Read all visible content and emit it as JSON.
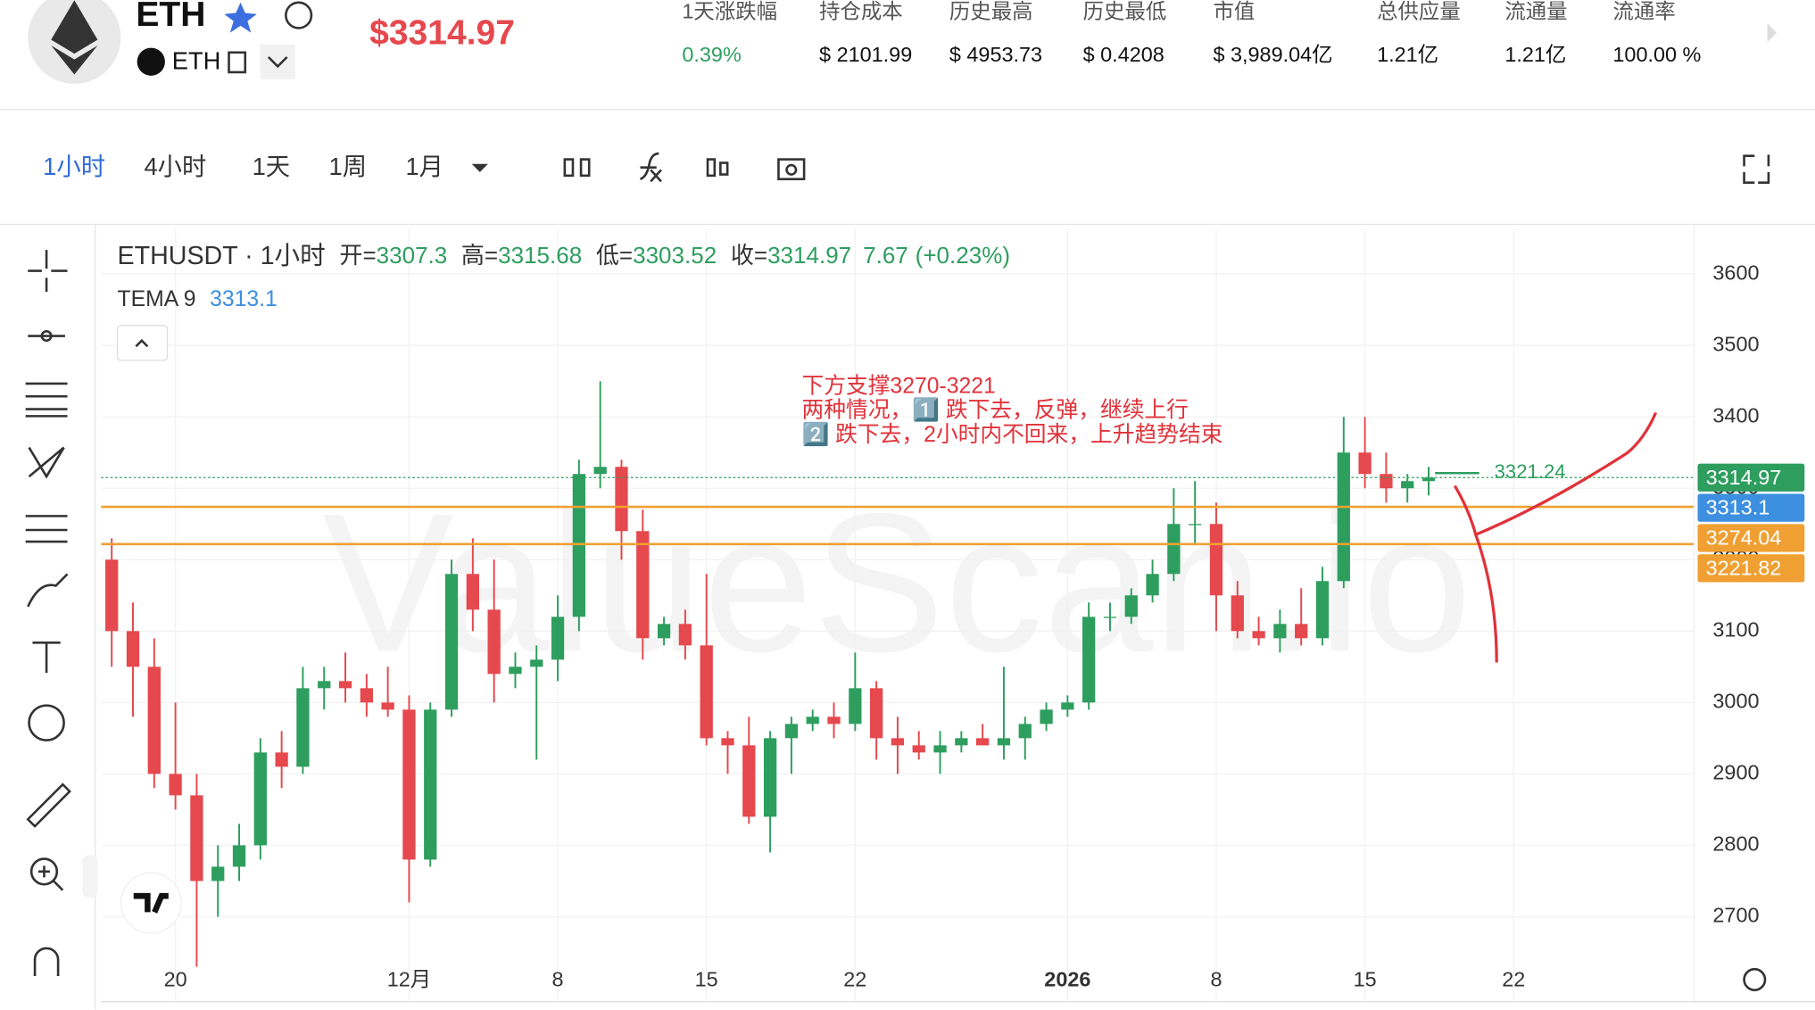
{
  "header": {
    "symbol": "ETH",
    "sub_symbol": "ETH",
    "price": "$3314.97",
    "stats": [
      {
        "label": "1天涨跌幅",
        "value": "0.39%"
      },
      {
        "label": "持仓成本",
        "value": "$ 2101.99"
      },
      {
        "label": "历史最高",
        "value": "$ 4953.73"
      },
      {
        "label": "历史最低",
        "value": "$ 0.4208"
      },
      {
        "label": "市值",
        "value": "$ 3,989.04亿"
      },
      {
        "label": "总供应量",
        "value": "1.21亿"
      },
      {
        "label": "流通量",
        "value": "1.21亿"
      },
      {
        "label": "流通率",
        "value": "100.00 %"
      }
    ]
  },
  "toolbar": {
    "intervals": [
      "1小时",
      "4小时",
      "1天",
      "1周",
      "1月"
    ]
  },
  "legend": {
    "title": "ETHUSDT · 1小时",
    "fields": [
      {
        "label": "开=",
        "value": 3307.3
      },
      {
        "label": "高=",
        "value": 3315.68
      },
      {
        "label": "低=",
        "value": 3303.52
      },
      {
        "label": "收=",
        "value": 3314.97
      }
    ],
    "change": 7.67,
    "change_pct": "(+0.23%)",
    "indicator": "TEMA 9",
    "indicator_value": 3313.1
  },
  "chart_data": {
    "type": "candlestick",
    "watermark": "ValueScan.io",
    "categories": [
      null,
      null,
      null,
      "20",
      null,
      null,
      null,
      null,
      null,
      null,
      null,
      null,
      null,
      null,
      "12月",
      null,
      null,
      null,
      null,
      null,
      null,
      "8",
      null,
      null,
      null,
      null,
      null,
      null,
      "15",
      null,
      null,
      null,
      null,
      null,
      null,
      "22",
      null,
      null,
      null,
      null,
      null,
      null,
      null,
      null,
      null,
      "2026",
      null,
      null,
      null,
      null,
      null,
      null,
      "8",
      null,
      null,
      null,
      null,
      null,
      null,
      "15",
      null,
      null,
      null,
      null,
      null,
      null,
      "22",
      null,
      null,
      null,
      null,
      null,
      null,
      null,
      null
    ],
    "open": [
      3200,
      3100,
      3050,
      2900,
      2870,
      2750,
      2770,
      2800,
      2930,
      2910,
      3020,
      3030,
      3020,
      3000,
      2990,
      2780,
      2990,
      3180,
      3130,
      3040,
      3050,
      3060,
      3120,
      3320,
      3330,
      3240,
      3090,
      3110,
      3080,
      2950,
      2940,
      2840,
      2950,
      2970,
      2980,
      2970,
      3020,
      2950,
      2940,
      2930,
      2940,
      2950,
      2940,
      2950,
      2970,
      2990,
      3000,
      3120,
      3120,
      3150,
      3180,
      3250,
      3250,
      3150,
      3100,
      3090,
      3110,
      3090,
      3170,
      3350,
      3320,
      3300,
      3310,
      null,
      null,
      null,
      null,
      null,
      null,
      null,
      null,
      null,
      null,
      null,
      null
    ],
    "high": [
      3230,
      3140,
      3090,
      3000,
      2900,
      2800,
      2830,
      2950,
      2960,
      3050,
      3050,
      3070,
      3040,
      3050,
      3010,
      3000,
      3200,
      3230,
      3200,
      3070,
      3080,
      3150,
      3340,
      3450,
      3340,
      3270,
      3120,
      3130,
      3180,
      2960,
      2980,
      2960,
      2980,
      2990,
      3000,
      3070,
      3030,
      2980,
      2960,
      2960,
      2960,
      2970,
      3050,
      2980,
      3000,
      3010,
      3140,
      3140,
      3160,
      3200,
      3300,
      3310,
      3280,
      3170,
      3120,
      3130,
      3160,
      3190,
      3400,
      3400,
      3350,
      3320,
      3330,
      null,
      null,
      null,
      null,
      null,
      null,
      null,
      null,
      null,
      null,
      null,
      null
    ],
    "low": [
      3050,
      2980,
      2880,
      2850,
      2630,
      2700,
      2750,
      2780,
      2880,
      2900,
      2990,
      3000,
      2980,
      2980,
      2720,
      2770,
      2980,
      3100,
      3000,
      3020,
      2920,
      3030,
      3100,
      3300,
      3200,
      3060,
      3080,
      3060,
      2940,
      2900,
      2830,
      2790,
      2900,
      2960,
      2950,
      2960,
      2920,
      2900,
      2920,
      2900,
      2930,
      2940,
      2920,
      2920,
      2960,
      2980,
      2990,
      3100,
      3110,
      3140,
      3170,
      3220,
      3100,
      3090,
      3080,
      3070,
      3080,
      3080,
      3160,
      3300,
      3280,
      3280,
      3290,
      null,
      null,
      null,
      null,
      null,
      null,
      null,
      null,
      null,
      null,
      null,
      null
    ],
    "close": [
      3100,
      3050,
      2900,
      2870,
      2750,
      2770,
      2800,
      2930,
      2910,
      3020,
      3030,
      3020,
      3000,
      2990,
      2780,
      2990,
      3180,
      3130,
      3040,
      3050,
      3060,
      3120,
      3320,
      3330,
      3240,
      3090,
      3110,
      3080,
      2950,
      2940,
      2840,
      2950,
      2970,
      2980,
      2970,
      3020,
      2950,
      2940,
      2930,
      2940,
      2950,
      2940,
      2950,
      2970,
      2990,
      3000,
      3120,
      3120,
      3150,
      3180,
      3250,
      3250,
      3150,
      3100,
      3090,
      3110,
      3090,
      3170,
      3350,
      3320,
      3300,
      3310,
      3314.97,
      null,
      null,
      null,
      null,
      null,
      null,
      null,
      null,
      null,
      null,
      null,
      null
    ],
    "up_color": "#2e9e5f",
    "down_color": "#e5484d",
    "ylim": [
      2581,
      3663
    ],
    "yticks": [
      2700,
      2800,
      2900,
      3000,
      3100,
      3200,
      3300,
      3400,
      3500,
      3600
    ],
    "grid": true,
    "price_lines": [
      {
        "value": 3314.97,
        "color": "#2e9e5f",
        "style": "dotted"
      },
      {
        "value": 3313.1,
        "color": "#3d8fe0",
        "style": "none"
      },
      {
        "value": 3274.04,
        "color": "#f0a033",
        "style": "solid"
      },
      {
        "value": 3221.82,
        "color": "#f0a033",
        "style": "solid"
      }
    ],
    "level": {
      "value": 3321.24,
      "color": "#2e9e5f"
    },
    "annotation": [
      "下方支撑3270-3221",
      "两种情况，1️⃣ 跌下去，反弹，继续上行",
      "2️⃣ 跌下去，2小时内不回来，上升趋势结束"
    ]
  }
}
